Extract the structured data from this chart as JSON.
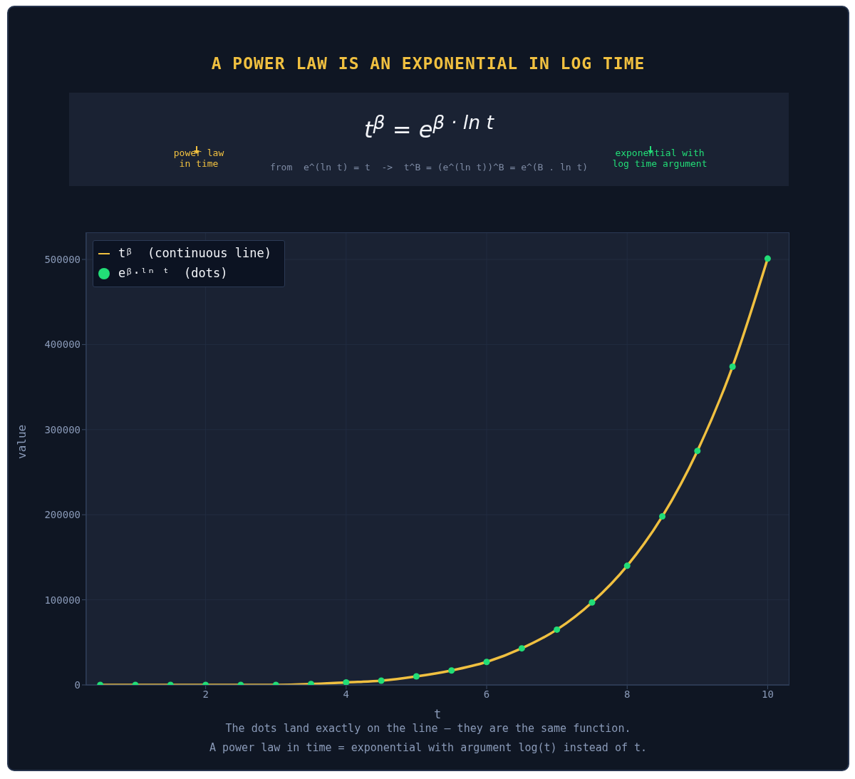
{
  "chart_data": {
    "type": "line",
    "title": "A POWER LAW IS AN EXPONENTIAL IN LOG TIME",
    "xlabel": "t",
    "ylabel": "value",
    "annotations": [
      "t$^{β}$  =  e$^{β · ln t}$",
      "power law in time",
      "from  e^(ln t) = t  ->  t^B = (e^(ln t))^B = e^(B . ln t)",
      "exponential with log time argument",
      "The dots land exactly on the line — they are the same function.",
      "A power law in time = exponential with argument log(t) instead of t."
    ],
    "x": [
      0.5,
      1,
      1.5,
      2,
      2.5,
      3,
      3.5,
      4,
      4.5,
      5,
      5.5,
      6,
      6.5,
      7,
      7.5,
      8,
      8.5,
      9,
      9.5,
      10
    ],
    "series": [
      {
        "name": "tᵝ  (continuous line)",
        "color": "#f0c040",
        "marker": "none",
        "line_style": "solid",
        "values": [
          0,
          0,
          0,
          0,
          0,
          0,
          1000,
          3000,
          5000,
          10000,
          17000,
          27000,
          43000,
          65000,
          97000,
          140000,
          198000,
          275000,
          374000,
          501000
        ]
      },
      {
        "name": "eᵝ·ˡⁿ ᵗ  (dots)",
        "type": "scatter",
        "color": "#22dd77",
        "marker": "circle",
        "values": [
          0,
          0,
          0,
          0,
          0,
          0,
          1000,
          3000,
          5000,
          10000,
          17000,
          27000,
          43000,
          65000,
          97000,
          140000,
          198000,
          275000,
          374000,
          501000
        ]
      }
    ],
    "xlim": [
      0.3,
      10.3
    ],
    "ylim": [
      0,
      531000
    ],
    "xticks": [
      2,
      4,
      6,
      8,
      10
    ],
    "yticks": [
      0,
      100000,
      200000,
      300000,
      400000,
      500000
    ],
    "grid": true,
    "legend": "top left"
  }
}
